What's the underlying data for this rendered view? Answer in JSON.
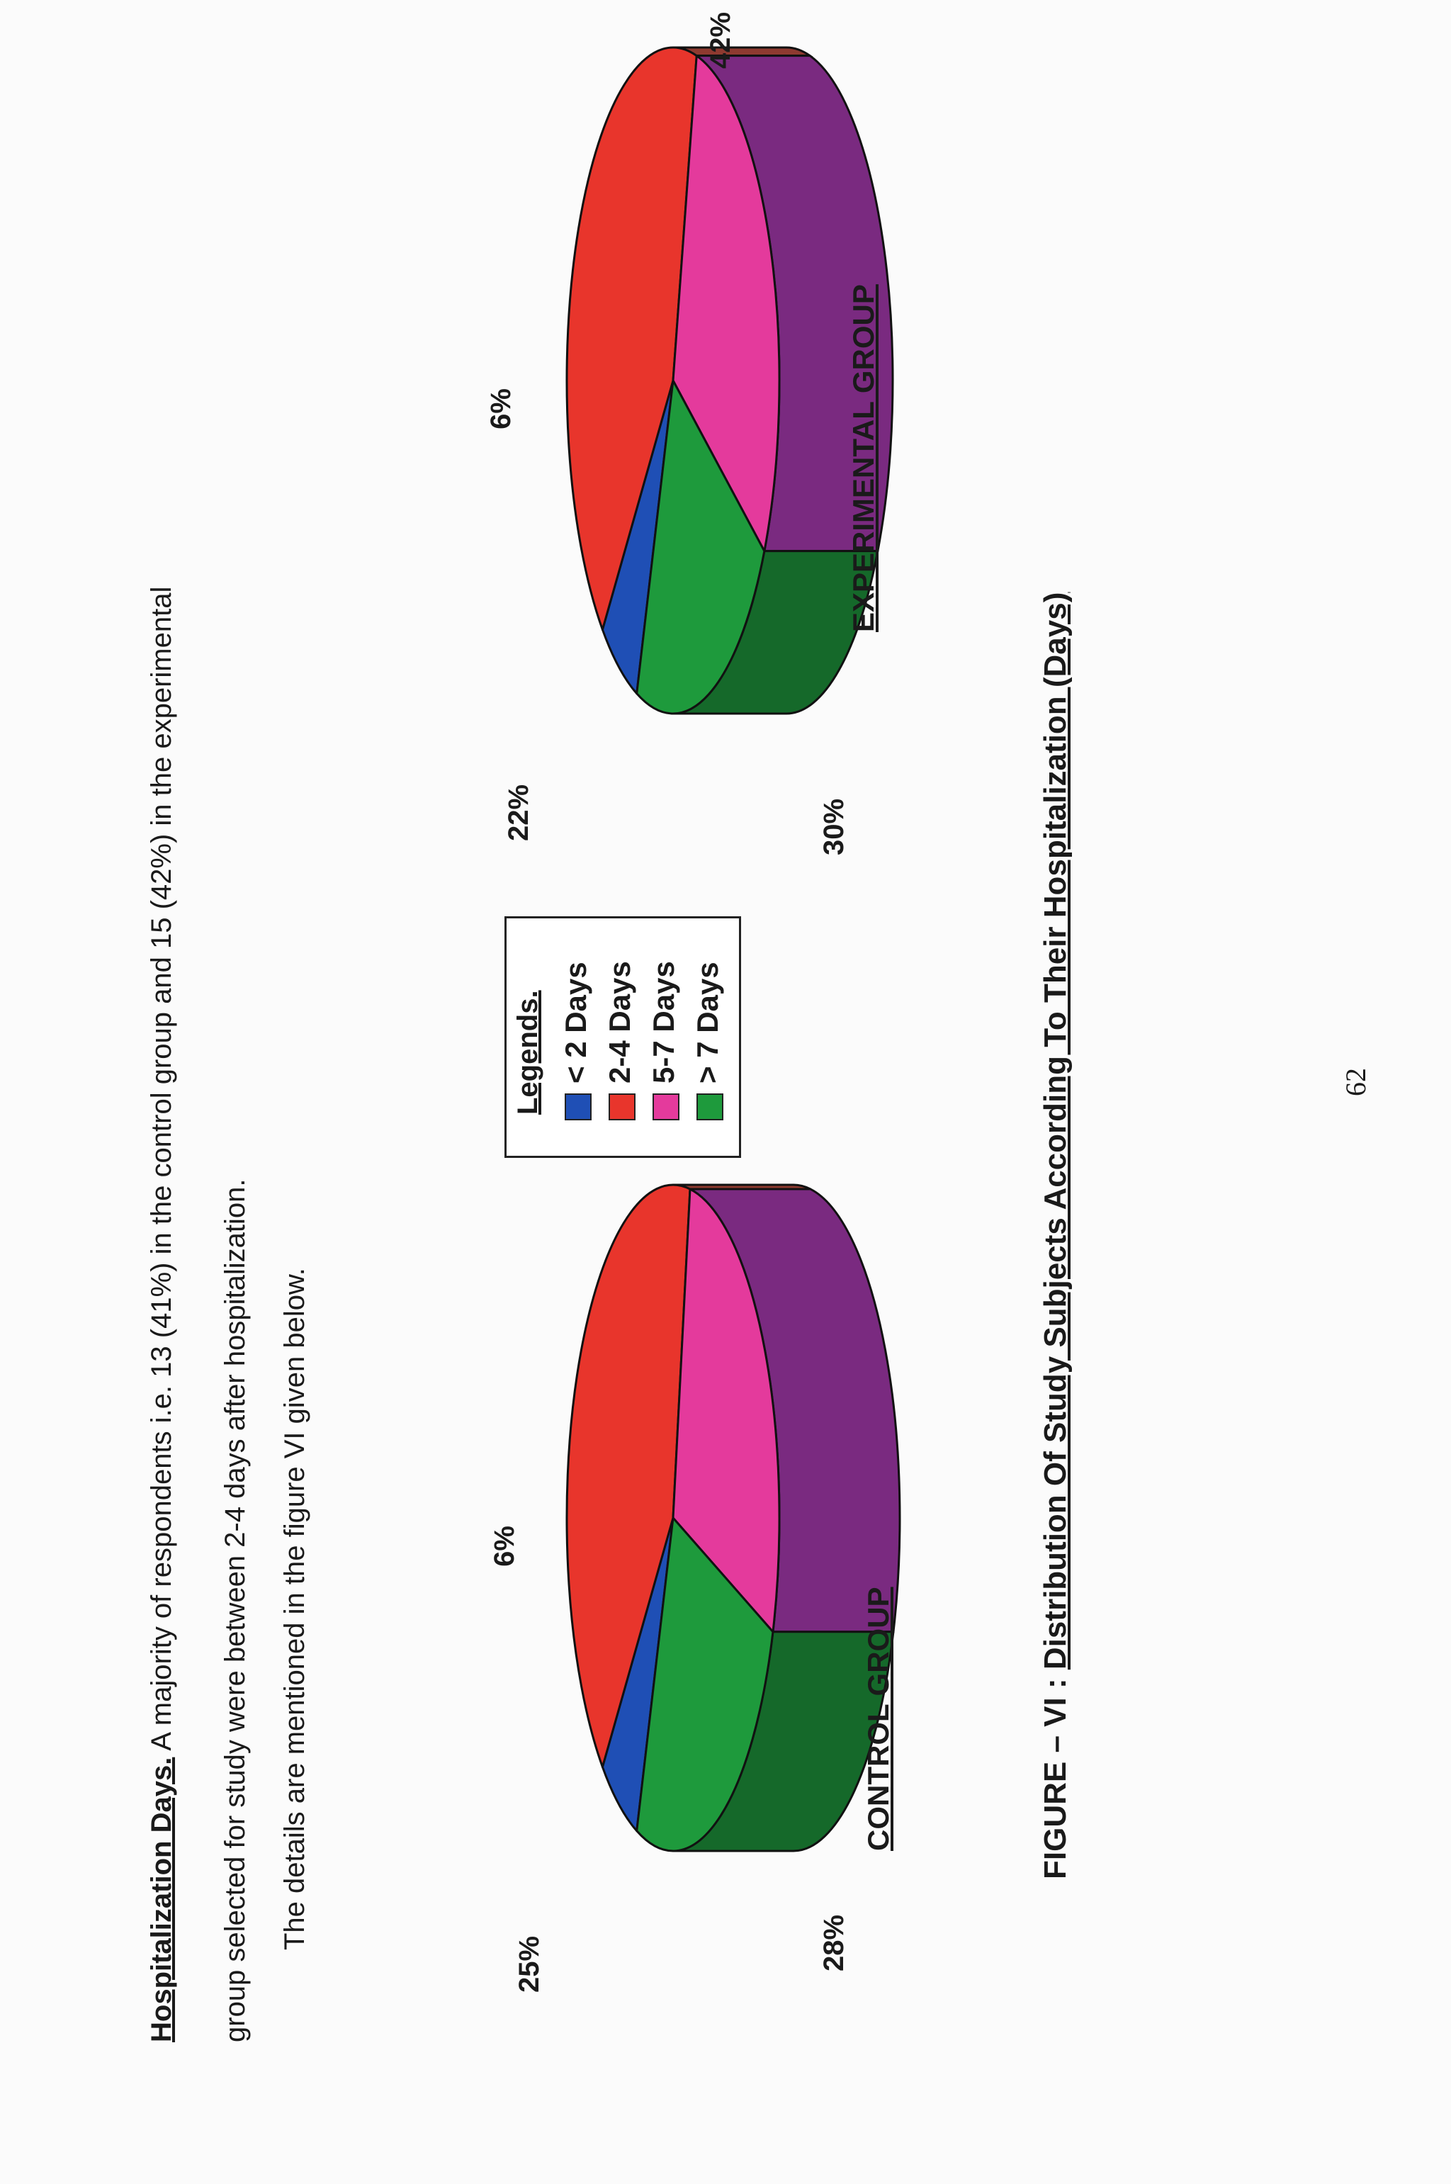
{
  "paragraph": {
    "heading": "Hospitalization Days.",
    "line1_rest": " A majority of respondents i.e. 13 (41%) in the control group and 15 (42%) in the experimental",
    "line2": "group selected for study were between 2-4 days after hospitalization.",
    "line3": "The details are mentioned in the figure VI given below."
  },
  "legend": {
    "title": "Legends.",
    "items": [
      {
        "label": "< 2 Days",
        "color": "#1f4fb5"
      },
      {
        "label": "2-4 Days",
        "color": "#e8352c"
      },
      {
        "label": "5-7 Days",
        "color": "#e43a9c"
      },
      {
        "label": "> 7 Days",
        "color": "#1e9a3c"
      }
    ]
  },
  "figure": {
    "prefix": "FIGURE – VI : ",
    "title": "Distribution Of Study Subjects According To Their Hospitalization (Days)"
  },
  "page_number": "62",
  "chart_data": [
    {
      "type": "pie",
      "title": "CONTROL GROUP",
      "categories": [
        "< 2 Days",
        "2-4 Days",
        "5-7 Days",
        "> 7 Days"
      ],
      "values": [
        6,
        41,
        28,
        25
      ],
      "labels": [
        "6%",
        "41%",
        "28%",
        "25%"
      ],
      "colors": [
        "#1f4fb5",
        "#e8352c",
        "#e43a9c",
        "#1e9a3c"
      ],
      "side_colors": [
        "#14357e",
        "#8e3a30",
        "#7a2a80",
        "#15692a"
      ],
      "style": "3d"
    },
    {
      "type": "pie",
      "title": "EXPERIMENTAL GROUP",
      "categories": [
        "< 2 Days",
        "2-4 Days",
        "5-7 Days",
        "> 7 Days"
      ],
      "values": [
        6,
        42,
        30,
        22
      ],
      "labels": [
        "6%",
        "42%",
        "30%",
        "22%"
      ],
      "colors": [
        "#1f4fb5",
        "#e8352c",
        "#e43a9c",
        "#1e9a3c"
      ],
      "side_colors": [
        "#14357e",
        "#8e3a30",
        "#7a2a80",
        "#15692a"
      ],
      "style": "3d"
    }
  ]
}
